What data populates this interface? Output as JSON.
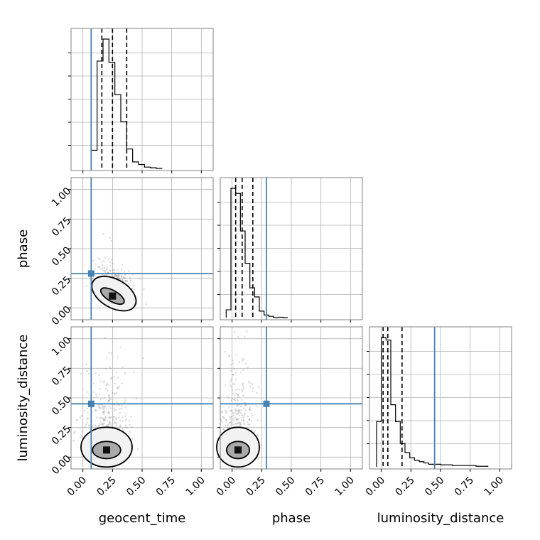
{
  "chart_data": {
    "type": "corner",
    "parameters": [
      "geocent_time",
      "phase",
      "luminosity_distance"
    ],
    "axis_labels": {
      "geocent_time": "geocent_time",
      "phase": "phase",
      "luminosity_distance": "luminosity_distance"
    },
    "range": [
      -0.1,
      1.1
    ],
    "ticks": [
      0.0,
      0.25,
      0.5,
      0.75,
      1.0
    ],
    "tick_labels": [
      "0.00",
      "0.25",
      "0.50",
      "0.75",
      "1.00"
    ],
    "grid": true,
    "truths": {
      "geocent_time": 0.07,
      "phase": 0.29,
      "luminosity_distance": 0.45
    },
    "truth_color": "#4682b4",
    "quantiles": {
      "geocent_time": [
        0.16,
        0.25,
        0.37
      ],
      "phase": [
        0.03,
        0.085,
        0.175
      ],
      "luminosity_distance": [
        0.015,
        0.055,
        0.175
      ]
    },
    "histograms": {
      "geocent_time": {
        "bin_edges": [
          0.07,
          0.12,
          0.17,
          0.22,
          0.27,
          0.32,
          0.37,
          0.42,
          0.47,
          0.52,
          0.57,
          0.62,
          0.67
        ],
        "counts": [
          14,
          83,
          100,
          82,
          57,
          36,
          15,
          5,
          3,
          1,
          0.5,
          0
        ]
      },
      "phase": {
        "bin_edges": [
          -0.05,
          -0.01,
          0.03,
          0.07,
          0.11,
          0.15,
          0.19,
          0.23,
          0.27,
          0.31,
          0.35,
          0.39,
          0.43,
          0.47
        ],
        "counts": [
          6,
          100,
          96,
          67,
          42,
          23,
          16,
          5,
          2,
          1,
          0,
          0.3,
          0
        ]
      },
      "luminosity_distance": {
        "bin_edges": [
          -0.04,
          0.0,
          0.04,
          0.08,
          0.12,
          0.16,
          0.2,
          0.24,
          0.28,
          0.32,
          0.36,
          0.4,
          0.5,
          0.6,
          0.7,
          0.8,
          0.9
        ],
        "counts": [
          35,
          100,
          98,
          48,
          35,
          18,
          11,
          7,
          5,
          4,
          3,
          2,
          1.5,
          1,
          1,
          0.4
        ]
      }
    },
    "density_peaks": {
      "phase_vs_geocent_time": {
        "x": 0.25,
        "y": 0.1
      },
      "luminosity_distance_vs_geocent_time": {
        "x": 0.2,
        "y": 0.06
      },
      "luminosity_distance_vs_phase": {
        "x": 0.05,
        "y": 0.06
      }
    },
    "panels": [
      {
        "row": 0,
        "col": 0,
        "kind": "hist",
        "param": "geocent_time"
      },
      {
        "row": 1,
        "col": 0,
        "kind": "2d",
        "x": "geocent_time",
        "y": "phase"
      },
      {
        "row": 1,
        "col": 1,
        "kind": "hist",
        "param": "phase"
      },
      {
        "row": 2,
        "col": 0,
        "kind": "2d",
        "x": "geocent_time",
        "y": "luminosity_distance"
      },
      {
        "row": 2,
        "col": 1,
        "kind": "2d",
        "x": "phase",
        "y": "luminosity_distance"
      },
      {
        "row": 2,
        "col": 2,
        "kind": "hist",
        "param": "luminosity_distance"
      }
    ]
  }
}
